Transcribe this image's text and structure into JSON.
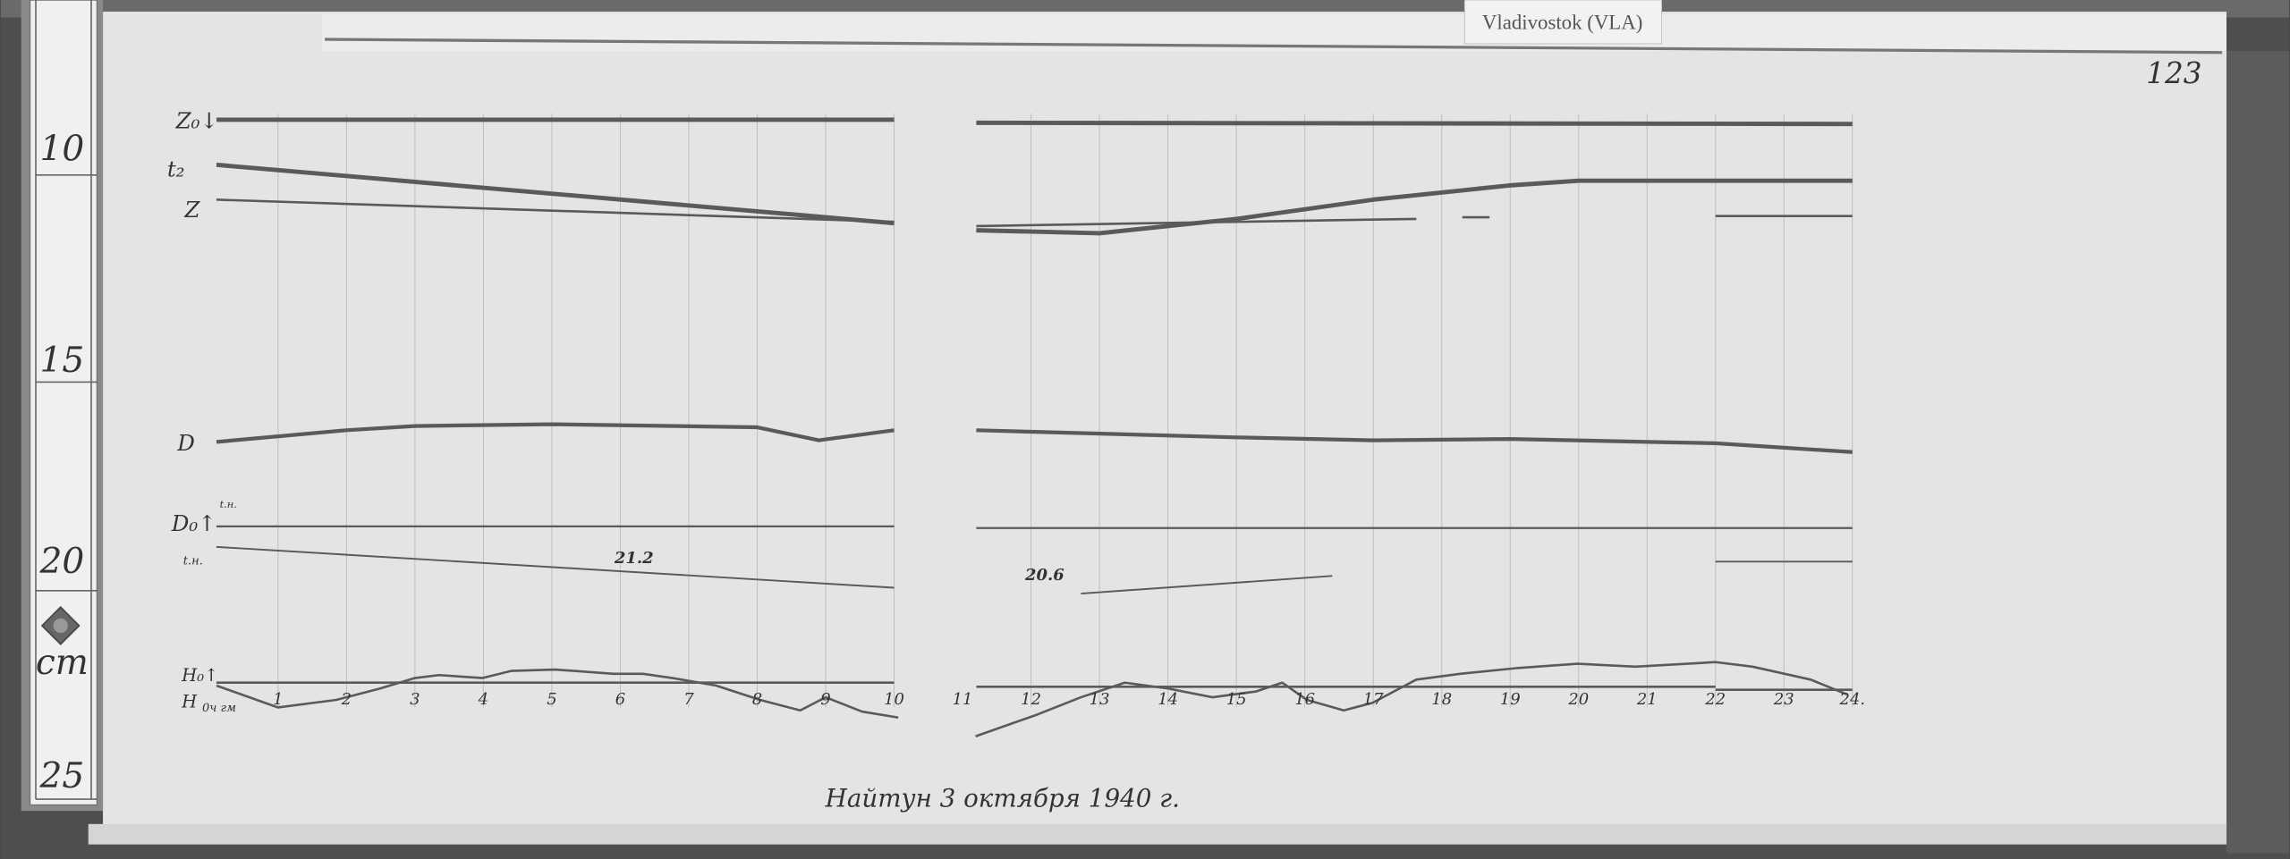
{
  "station_label": "Vladivostok (VLA)",
  "sheet_number": "123",
  "footer_caption": "Найтун 3 октября 1940 г.",
  "ruler": {
    "ticks": [
      "10",
      "15",
      "20",
      "25"
    ],
    "unit": "cm",
    "emblem_icon": "diamond-emblem-icon"
  },
  "trace_labels": {
    "z0": "Z₀↓",
    "t2": "t₂",
    "z": "Z",
    "d": "D",
    "d0": "D₀↑",
    "d0_note": "t.н.",
    "t_note": "t.н.",
    "h0": "H₀↑",
    "h": "H",
    "h_note": "0ч гм"
  },
  "colors": {
    "paper": "#e6e6e6",
    "trace": "#5a5a5a",
    "background": "#4a4a4a"
  },
  "chart_data": {
    "type": "line",
    "title": "",
    "xlabel": "",
    "ylabel": "",
    "x_ticks": [
      "1",
      "2",
      "3",
      "4",
      "5",
      "6",
      "7",
      "8",
      "9",
      "10",
      "11",
      "12",
      "13",
      "14",
      "15",
      "16",
      "17",
      "18",
      "19",
      "20",
      "21",
      "22",
      "23",
      "24."
    ],
    "xlim": [
      0,
      24.2
    ],
    "y_unit": "cm",
    "ylim": [
      8,
      27
    ],
    "y_inverted": true,
    "grid": "vertical hour lines",
    "annotations": [
      {
        "text": "21.2",
        "x": 6.2,
        "y": 19.8
      },
      {
        "text": "20.6",
        "x": 12.2,
        "y": 20.2
      }
    ],
    "series": [
      {
        "name": "Z₀",
        "segments": [
          [
            [
              0.1,
              9.38
            ],
            [
              10.0,
              9.38
            ]
          ],
          [
            [
              11.2,
              9.45
            ],
            [
              24.0,
              9.48
            ]
          ]
        ]
      },
      {
        "name": "t₂",
        "segments": [
          [
            [
              0.1,
              10.45
            ],
            [
              10.0,
              11.84
            ]
          ],
          [
            [
              11.2,
              12.01
            ],
            [
              13,
              12.08
            ],
            [
              15,
              11.74
            ],
            [
              17,
              11.28
            ],
            [
              19,
              10.94
            ],
            [
              20,
              10.83
            ],
            [
              24,
              10.83
            ]
          ]
        ]
      },
      {
        "name": "Z",
        "segments": [
          [
            [
              0.1,
              11.28
            ],
            [
              10.0,
              11.81
            ]
          ],
          [
            [
              11.2,
              11.91
            ],
            [
              17.63,
              11.74
            ]
          ],
          [
            [
              18.3,
              11.7
            ],
            [
              18.7,
              11.7
            ]
          ],
          [
            [
              22.0,
              11.67
            ],
            [
              24.0,
              11.67
            ]
          ]
        ]
      },
      {
        "name": "D",
        "segments": [
          [
            [
              0.1,
              17.05
            ],
            [
              2,
              16.77
            ],
            [
              3,
              16.67
            ],
            [
              5,
              16.63
            ],
            [
              8,
              16.7
            ],
            [
              8.9,
              17.01
            ],
            [
              10.0,
              16.77
            ]
          ],
          [
            [
              11.2,
              16.77
            ],
            [
              15,
              16.94
            ],
            [
              17,
              17.01
            ],
            [
              19,
              16.98
            ],
            [
              21,
              17.05
            ],
            [
              22,
              17.08
            ],
            [
              24,
              17.29
            ]
          ]
        ]
      },
      {
        "name": "D₀",
        "segments": [
          [
            [
              0.1,
              19.06
            ],
            [
              10.0,
              19.06
            ]
          ],
          [
            [
              11.2,
              19.1
            ],
            [
              24.0,
              19.1
            ]
          ]
        ]
      },
      {
        "name": "t",
        "segments": [
          [
            [
              0.1,
              19.55
            ],
            [
              10.0,
              20.52
            ]
          ],
          [
            [
              12.73,
              20.66
            ],
            [
              16.4,
              20.24
            ]
          ],
          [
            [
              22.0,
              19.9
            ],
            [
              24.0,
              19.9
            ]
          ]
        ]
      },
      {
        "name": "H₀",
        "segments": [
          [
            [
              0.1,
              22.78
            ],
            [
              10.0,
              22.78
            ]
          ],
          [
            [
              11.2,
              22.88
            ],
            [
              22.0,
              22.88
            ]
          ],
          [
            [
              22.0,
              22.95
            ],
            [
              24.0,
              22.95
            ]
          ]
        ]
      },
      {
        "name": "H",
        "segments": [
          [
            [
              0.1,
              22.85
            ],
            [
              1.0,
              23.37
            ],
            [
              1.85,
              23.19
            ],
            [
              2.49,
              22.92
            ],
            [
              3.0,
              22.67
            ],
            [
              3.35,
              22.6
            ],
            [
              3.99,
              22.67
            ],
            [
              4.41,
              22.5
            ],
            [
              5.05,
              22.47
            ],
            [
              5.9,
              22.57
            ],
            [
              6.33,
              22.57
            ],
            [
              6.76,
              22.67
            ],
            [
              7.4,
              22.85
            ],
            [
              8.04,
              23.19
            ],
            [
              8.63,
              23.44
            ],
            [
              9.0,
              23.13
            ],
            [
              9.53,
              23.47
            ],
            [
              10.06,
              23.61
            ]
          ],
          [
            [
              11.19,
              24.06
            ],
            [
              12.09,
              23.54
            ],
            [
              12.73,
              23.13
            ],
            [
              13.37,
              22.78
            ],
            [
              14.0,
              22.92
            ],
            [
              14.65,
              23.13
            ],
            [
              15.29,
              22.99
            ],
            [
              15.67,
              22.78
            ],
            [
              16.03,
              23.19
            ],
            [
              16.57,
              23.44
            ],
            [
              16.99,
              23.26
            ],
            [
              17.63,
              22.71
            ],
            [
              18.27,
              22.57
            ],
            [
              19.12,
              22.43
            ],
            [
              19.98,
              22.33
            ],
            [
              20.83,
              22.4
            ],
            [
              22.0,
              22.29
            ],
            [
              22.54,
              22.4
            ],
            [
              23.39,
              22.71
            ],
            [
              23.92,
              23.06
            ]
          ]
        ]
      }
    ]
  }
}
